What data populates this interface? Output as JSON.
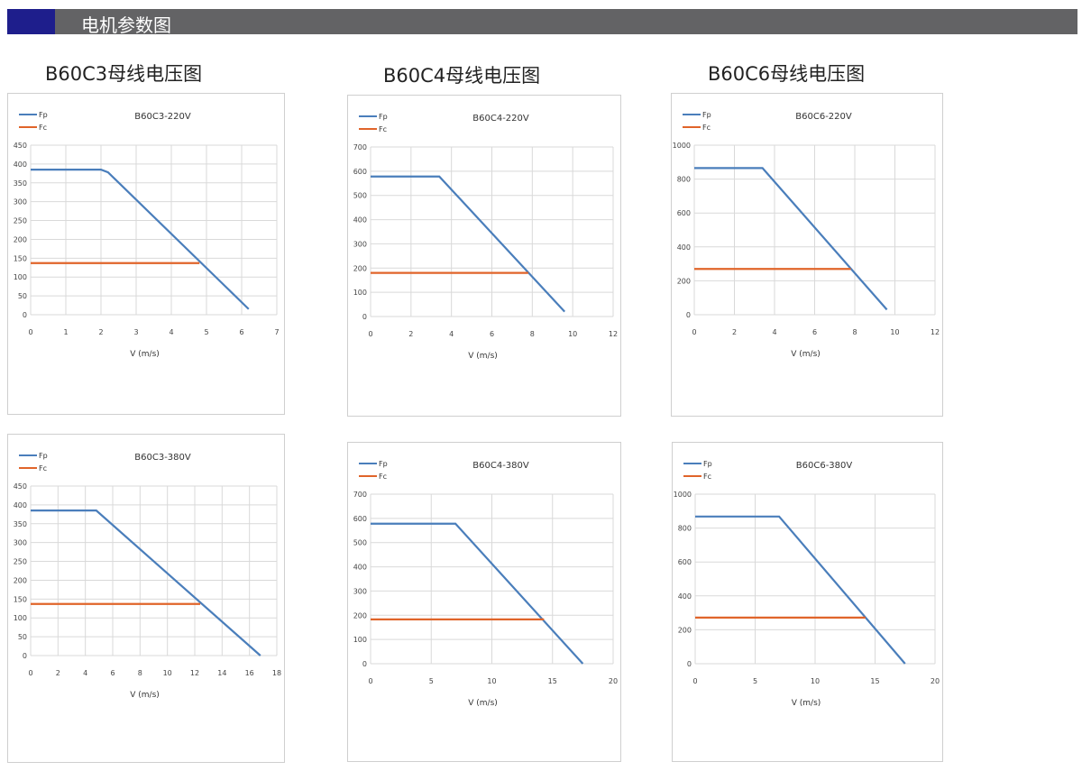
{
  "header": {
    "title": "电机参数图",
    "accent": "#1e1e8c",
    "bar": "#636365"
  },
  "headings": [
    "B60C3母线电压图",
    "B60C4母线电压图",
    "B60C6母线电压图"
  ],
  "colors": {
    "Fp": "#4a7ebb",
    "Fc": "#e0642a"
  },
  "chart_data": [
    {
      "type": "line",
      "title": "B60C3-220V",
      "xlabel": "V (m/s)",
      "xlim": [
        0,
        7
      ],
      "xstep": 1,
      "ylim": [
        0,
        450
      ],
      "ystep": 50,
      "grid": true,
      "legend": "top-left",
      "series": [
        {
          "name": "Fp",
          "x": [
            0,
            2,
            2.2,
            6.2
          ],
          "y": [
            385,
            385,
            378,
            15
          ]
        },
        {
          "name": "Fc",
          "x": [
            0,
            4.8
          ],
          "y": [
            137,
            137
          ]
        }
      ]
    },
    {
      "type": "line",
      "title": "B60C4-220V",
      "xlabel": "V (m/s)",
      "xlim": [
        0,
        12
      ],
      "xstep": 2,
      "ylim": [
        0,
        700
      ],
      "ystep": 100,
      "grid": true,
      "legend": "top-left",
      "series": [
        {
          "name": "Fp",
          "x": [
            0,
            3.4,
            9.6
          ],
          "y": [
            578,
            578,
            20
          ]
        },
        {
          "name": "Fc",
          "x": [
            0,
            7.8
          ],
          "y": [
            180,
            180
          ]
        }
      ]
    },
    {
      "type": "line",
      "title": "B60C6-220V",
      "xlabel": "V (m/s)",
      "xlim": [
        0,
        12
      ],
      "xstep": 2,
      "ylim": [
        0,
        1000
      ],
      "ystep": 200,
      "grid": true,
      "legend": "top-left",
      "series": [
        {
          "name": "Fp",
          "x": [
            0,
            3.4,
            9.6
          ],
          "y": [
            865,
            865,
            30
          ]
        },
        {
          "name": "Fc",
          "x": [
            0,
            7.8
          ],
          "y": [
            270,
            270
          ]
        }
      ]
    },
    {
      "type": "line",
      "title": "B60C3-380V",
      "xlabel": "V (m/s)",
      "xlim": [
        0,
        18
      ],
      "xstep": 2,
      "ylim": [
        0,
        450
      ],
      "ystep": 50,
      "grid": true,
      "legend": "top-left",
      "series": [
        {
          "name": "Fp",
          "x": [
            0,
            4.8,
            16.8
          ],
          "y": [
            385,
            385,
            0
          ]
        },
        {
          "name": "Fc",
          "x": [
            0,
            12.4
          ],
          "y": [
            137,
            137
          ]
        }
      ]
    },
    {
      "type": "line",
      "title": "B60C4-380V",
      "xlabel": "V (m/s)",
      "xlim": [
        0,
        20
      ],
      "xstep": 5,
      "ylim": [
        0,
        700
      ],
      "ystep": 100,
      "grid": true,
      "legend": "top-left",
      "series": [
        {
          "name": "Fp",
          "x": [
            0,
            7,
            17.5
          ],
          "y": [
            578,
            578,
            0
          ]
        },
        {
          "name": "Fc",
          "x": [
            0,
            14.3
          ],
          "y": [
            183,
            183
          ]
        }
      ]
    },
    {
      "type": "line",
      "title": "B60C6-380V",
      "xlabel": "V (m/s)",
      "xlim": [
        0,
        20
      ],
      "xstep": 5,
      "ylim": [
        0,
        1000
      ],
      "ystep": 200,
      "grid": true,
      "legend": "top-left",
      "series": [
        {
          "name": "Fp",
          "x": [
            0,
            7,
            17.5
          ],
          "y": [
            868,
            868,
            0
          ]
        },
        {
          "name": "Fc",
          "x": [
            0,
            14.2
          ],
          "y": [
            272,
            272
          ]
        }
      ]
    }
  ]
}
